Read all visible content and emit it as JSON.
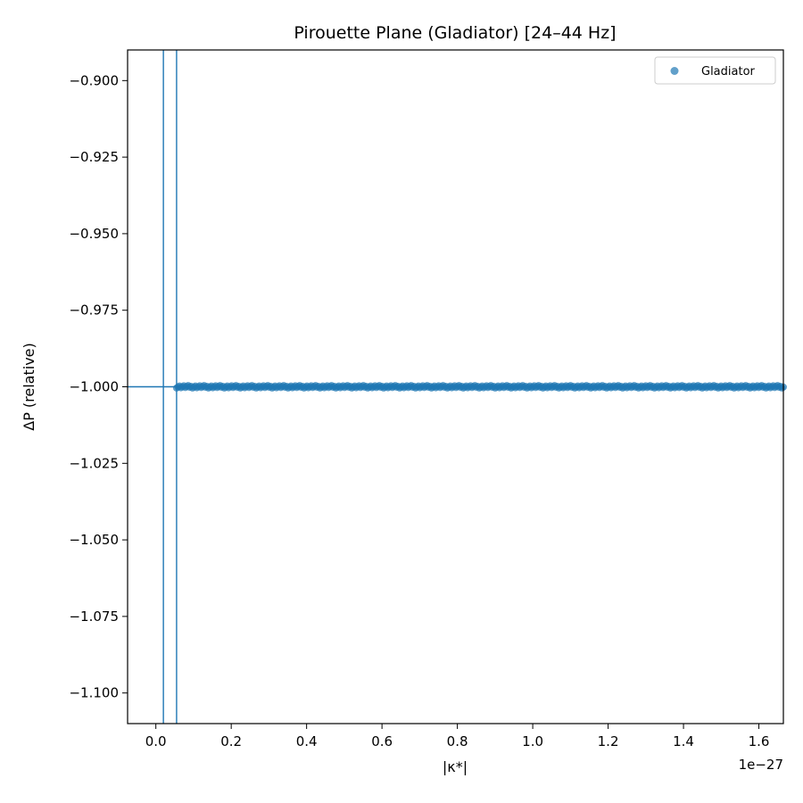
{
  "chart_data": {
    "type": "scatter",
    "title": "Pirouette Plane (Gladiator)  [24–44 Hz]",
    "xlabel": "|κ*|",
    "ylabel": "ΔP (relative)",
    "x_offset_text": "1e−27",
    "x_scale": 1e-27,
    "xlim": [
      -0.075,
      1.665
    ],
    "ylim": [
      -1.11,
      -0.89
    ],
    "x_ticks": [
      0.0,
      0.2,
      0.4,
      0.6,
      0.8,
      1.0,
      1.2,
      1.4,
      1.6
    ],
    "x_tick_labels": [
      "0.0",
      "0.2",
      "0.4",
      "0.6",
      "0.8",
      "1.0",
      "1.2",
      "1.4",
      "1.6"
    ],
    "y_ticks": [
      -0.9,
      -0.925,
      -0.95,
      -0.975,
      -1.0,
      -1.025,
      -1.05,
      -1.075,
      -1.1
    ],
    "y_tick_labels": [
      "−0.900",
      "−0.925",
      "−0.950",
      "−0.975",
      "−1.000",
      "−1.025",
      "−1.050",
      "−1.075",
      "−1.100"
    ],
    "grid": false,
    "legend_position": "top-right",
    "series": [
      {
        "name": "Gladiator",
        "color": "#1f77b4",
        "x_range": [
          0.055,
          1.665
        ],
        "y": -1.0
      }
    ],
    "reference_lines": {
      "vertical_x": [
        0.02,
        0.055
      ],
      "horizontal_y": [
        -1.0
      ],
      "color": "#1f77b4"
    }
  }
}
